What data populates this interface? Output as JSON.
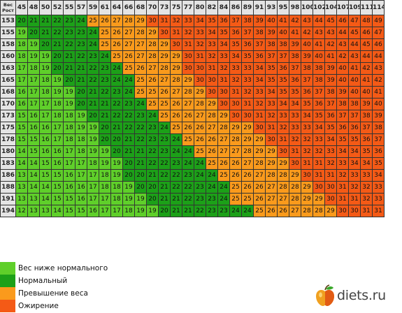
{
  "chart_data": {
    "type": "heatmap",
    "title": "",
    "corner_label_top": "Вес",
    "corner_label_bottom": "Рост",
    "weights": [
      "45",
      "48",
      "50",
      "52",
      "55",
      "57",
      "59",
      "61",
      "64",
      "66",
      "68",
      "70",
      "73",
      "75",
      "77",
      "80",
      "82",
      "84",
      "86",
      "89",
      "91",
      "93",
      "95",
      "98",
      "100",
      "102",
      "104",
      "107",
      "109",
      "111",
      "114"
    ],
    "heights": [
      "153",
      "155",
      "158",
      "160",
      "163",
      "165",
      "168",
      "170",
      "173",
      "175",
      "178",
      "180",
      "183",
      "186",
      "188",
      "191",
      "194"
    ],
    "values": [
      [
        20,
        21,
        21,
        22,
        23,
        24,
        25,
        26,
        27,
        28,
        29,
        30,
        31,
        32,
        33,
        34,
        35,
        36,
        37,
        38,
        39,
        40,
        41,
        42,
        43,
        44,
        45,
        46,
        47,
        48,
        49
      ],
      [
        19,
        20,
        21,
        22,
        23,
        23,
        24,
        25,
        26,
        27,
        28,
        29,
        30,
        31,
        32,
        33,
        34,
        35,
        36,
        37,
        38,
        39,
        40,
        41,
        42,
        43,
        43,
        44,
        45,
        46,
        47
      ],
      [
        18,
        19,
        20,
        21,
        22,
        23,
        24,
        25,
        26,
        27,
        27,
        28,
        29,
        30,
        31,
        32,
        33,
        34,
        35,
        36,
        37,
        38,
        38,
        39,
        40,
        41,
        42,
        43,
        44,
        45,
        46
      ],
      [
        18,
        19,
        19,
        20,
        21,
        22,
        23,
        24,
        25,
        26,
        27,
        28,
        29,
        29,
        30,
        31,
        32,
        33,
        34,
        35,
        36,
        37,
        37,
        38,
        39,
        40,
        41,
        42,
        43,
        44,
        44
      ],
      [
        17,
        18,
        19,
        20,
        21,
        21,
        22,
        23,
        24,
        25,
        26,
        27,
        28,
        29,
        30,
        30,
        31,
        32,
        33,
        33,
        34,
        35,
        36,
        37,
        38,
        38,
        39,
        40,
        41,
        42,
        43
      ],
      [
        17,
        17,
        18,
        19,
        20,
        21,
        22,
        23,
        24,
        24,
        25,
        26,
        27,
        28,
        29,
        30,
        30,
        31,
        32,
        33,
        34,
        35,
        35,
        36,
        37,
        38,
        39,
        40,
        40,
        41,
        42
      ],
      [
        16,
        17,
        18,
        19,
        19,
        20,
        21,
        22,
        23,
        24,
        25,
        25,
        26,
        27,
        28,
        29,
        30,
        30,
        31,
        32,
        33,
        34,
        35,
        35,
        36,
        37,
        38,
        39,
        40,
        40,
        41
      ],
      [
        16,
        17,
        17,
        18,
        19,
        20,
        21,
        21,
        22,
        23,
        24,
        25,
        25,
        26,
        27,
        28,
        29,
        30,
        30,
        31,
        32,
        33,
        34,
        34,
        35,
        36,
        37,
        38,
        38,
        39,
        40
      ],
      [
        15,
        16,
        17,
        18,
        18,
        19,
        20,
        21,
        22,
        22,
        23,
        24,
        25,
        26,
        26,
        27,
        28,
        29,
        30,
        30,
        31,
        32,
        33,
        33,
        34,
        35,
        36,
        37,
        37,
        38,
        39
      ],
      [
        15,
        16,
        16,
        17,
        18,
        19,
        19,
        20,
        21,
        22,
        22,
        23,
        24,
        25,
        26,
        26,
        27,
        28,
        29,
        29,
        30,
        31,
        32,
        33,
        33,
        34,
        35,
        36,
        36,
        37,
        38
      ],
      [
        15,
        15,
        16,
        17,
        18,
        18,
        19,
        20,
        20,
        21,
        22,
        23,
        23,
        24,
        25,
        26,
        26,
        27,
        28,
        29,
        29,
        30,
        31,
        32,
        32,
        33,
        34,
        35,
        35,
        36,
        37
      ],
      [
        14,
        15,
        16,
        16,
        17,
        18,
        19,
        19,
        20,
        21,
        21,
        22,
        23,
        24,
        24,
        25,
        26,
        27,
        27,
        28,
        29,
        29,
        30,
        31,
        32,
        32,
        33,
        34,
        34,
        35,
        36
      ],
      [
        14,
        14,
        15,
        16,
        17,
        17,
        18,
        19,
        19,
        20,
        21,
        22,
        22,
        23,
        24,
        24,
        25,
        26,
        26,
        27,
        28,
        29,
        29,
        30,
        31,
        31,
        32,
        33,
        34,
        34,
        35
      ],
      [
        13,
        14,
        15,
        15,
        16,
        17,
        17,
        18,
        19,
        20,
        20,
        21,
        22,
        22,
        23,
        24,
        24,
        25,
        26,
        26,
        27,
        28,
        28,
        29,
        30,
        31,
        31,
        32,
        33,
        33,
        34
      ],
      [
        13,
        14,
        14,
        15,
        16,
        16,
        17,
        18,
        18,
        19,
        20,
        20,
        21,
        22,
        22,
        23,
        24,
        24,
        25,
        26,
        26,
        27,
        28,
        28,
        29,
        30,
        30,
        31,
        32,
        32,
        33
      ],
      [
        13,
        13,
        14,
        15,
        15,
        16,
        17,
        17,
        18,
        19,
        19,
        20,
        21,
        21,
        22,
        23,
        23,
        24,
        25,
        25,
        26,
        27,
        27,
        28,
        29,
        29,
        30,
        31,
        31,
        32,
        33
      ],
      [
        12,
        13,
        13,
        14,
        15,
        15,
        16,
        17,
        17,
        18,
        19,
        19,
        20,
        21,
        21,
        22,
        23,
        23,
        24,
        24,
        25,
        26,
        26,
        27,
        28,
        28,
        29,
        30,
        30,
        31,
        31
      ]
    ],
    "categories": [
      {
        "name": "Вес ниже нормального",
        "color": "#5fcf2a"
      },
      {
        "name": "Нормальный",
        "color": "#1ca018"
      },
      {
        "name": "Превышение веса",
        "color": "#fa9a1c"
      },
      {
        "name": "Ожирение",
        "color": "#f45a16"
      }
    ],
    "thresholds": [
      20,
      25,
      30
    ],
    "legend": "bottom-left",
    "grid": true
  },
  "watermark": {
    "text": "diets.ru",
    "icon": "apple-icon"
  }
}
